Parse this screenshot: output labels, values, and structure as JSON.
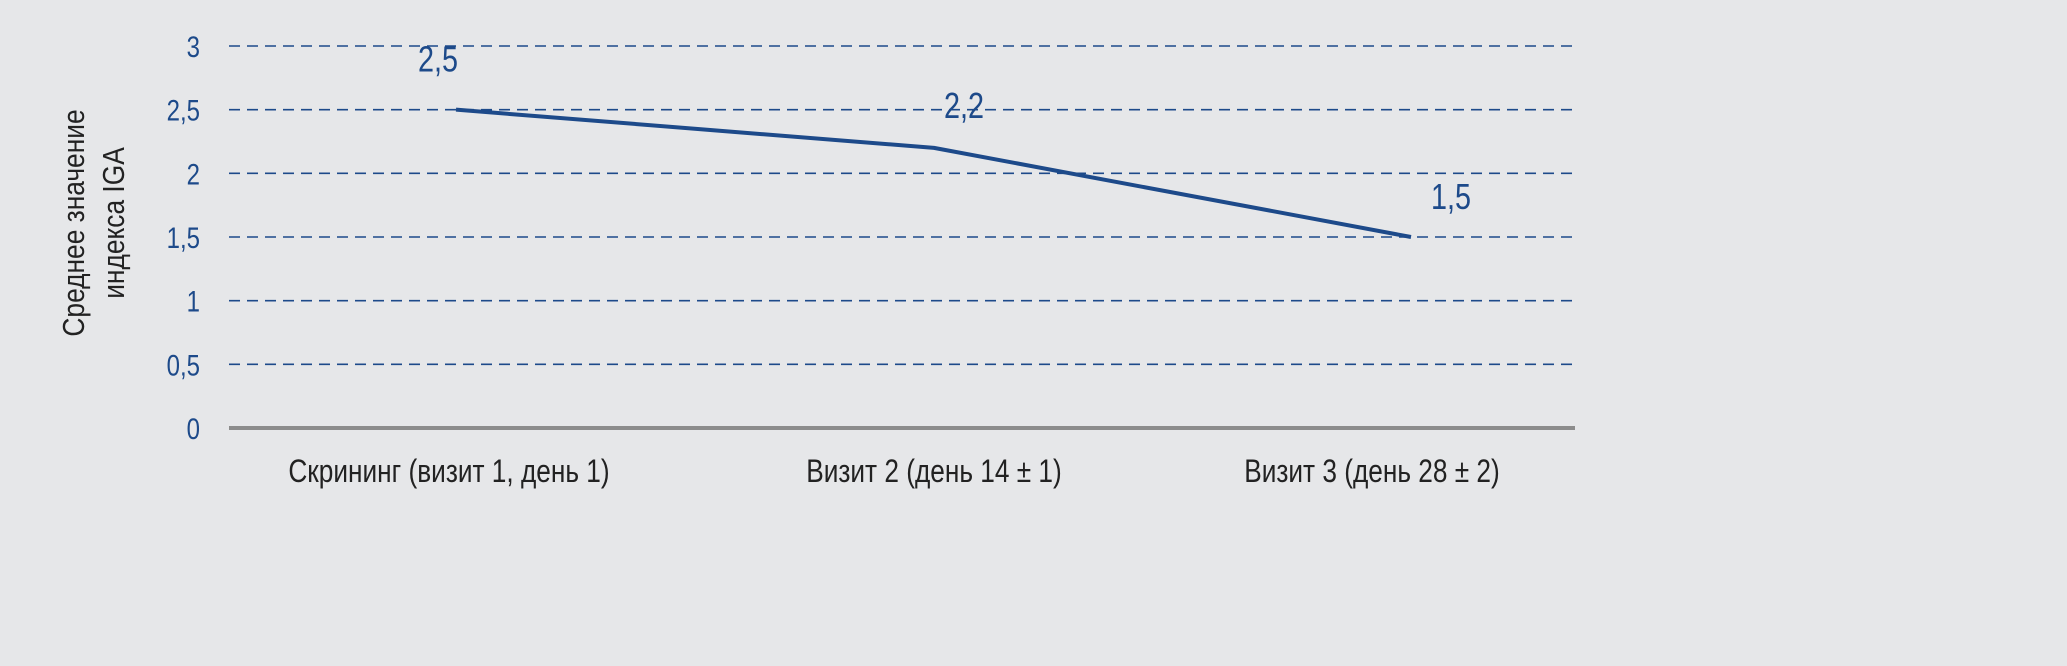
{
  "chart_data": {
    "type": "line",
    "title": "",
    "xlabel": "",
    "ylabel": [
      "Среднее значение",
      "индекса IGA"
    ],
    "categories": [
      "Скрининг (визит 1, день 1)",
      "Визит 2 (день 14 ± 1)",
      "Визит 3 (день 28 ± 2)"
    ],
    "series": [
      {
        "values": [
          2.5,
          2.2,
          1.5
        ]
      }
    ],
    "data_labels": [
      "2,5",
      "2,2",
      "1,5"
    ],
    "ylim": [
      0,
      3
    ],
    "yticks": [
      0,
      0.5,
      1,
      1.5,
      2,
      2.5,
      3
    ],
    "ytick_labels": [
      "0",
      "0,5",
      "1",
      "1,5",
      "2",
      "2,5",
      "3"
    ],
    "grid": "horizontal dashed",
    "legend": "none",
    "colors": {
      "line": "#1d4a8a",
      "grid": "#1d4a8a",
      "axis": "#8c8c8c",
      "background": "#e6e7e9"
    }
  }
}
